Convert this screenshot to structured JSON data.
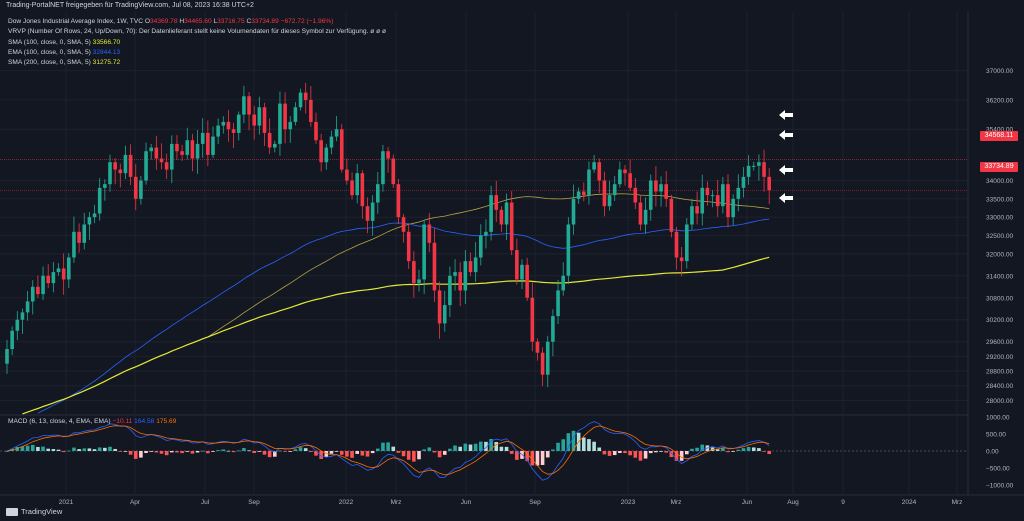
{
  "header": {
    "text": "Trading-PortalNET freigegeben für TradingView.com, Jul 08, 2023 16:38 UTC+2"
  },
  "legend": {
    "instrument": "Dow Jones Industrial Average Index, 1W, TVC",
    "ohlc": {
      "o_label": "O",
      "o": "34369.78",
      "h_label": "H",
      "h": "34465.60",
      "l_label": "L",
      "l": "33716.75",
      "c_label": "C",
      "c": "33734.89",
      "change": "−672.72 (−1.96%)"
    },
    "vrvp": "VRVP (Number Of Rows, 24, Up/Down, 70): Der Datenlieferant stellt keine Volumendaten für dieses Symbol zur Verfügung.",
    "vrvp_icons": "ø ø ø",
    "sma100_label": "SMA (100, close, 0, SMA, 5)",
    "sma100_value": "33566.70",
    "ema100_label": "EMA (100, close, 0, SMA, 5)",
    "ema100_value": "32844.13",
    "sma200_label": "SMA (200, close, 0, SMA, 5)",
    "sma200_value": "31275.72"
  },
  "macd_legend": {
    "label": "MACD (6, 13, close, 4, EMA, EMA)",
    "v1": "−10.11",
    "v2": "164.58",
    "v3": "175.69"
  },
  "price_tags": {
    "prev_close": "34568.11",
    "last": "33734.89"
  },
  "footer": {
    "brand": "TradingView"
  },
  "colors": {
    "background": "#131722",
    "up": "#22ab94",
    "down": "#f23645",
    "sma100": "#b5a642",
    "ema100": "#2962ff",
    "sma200": "#e2e834",
    "macd_line": "#2962ff",
    "signal_line": "#ff6d00",
    "hist_up": "#26a69a",
    "hist_up_light": "#b2dfdb",
    "hist_down": "#ff5252",
    "hist_down_light": "#ffcdd2"
  },
  "chart_data": {
    "type": "candlestick",
    "title": "Dow Jones Industrial Average Index, 1W, TVC",
    "y_ticks": [
      28000,
      28400,
      28800,
      29200,
      29600,
      30200,
      30800,
      31400,
      32000,
      32500,
      33000,
      33500,
      34000,
      35400,
      36200,
      37000
    ],
    "y_range": [
      27600,
      38600
    ],
    "x_ticks": [
      "2021",
      "Apr",
      "Jul",
      "Sep",
      "2022",
      "Mrz",
      "Jun",
      "Sep",
      "2023",
      "Mrz",
      "Jun",
      "Aug",
      "9",
      "2024",
      "Mrz"
    ],
    "macd_ticks": [
      "1000.00",
      "500.00",
      "0.00",
      "−500.00",
      "−1000.00"
    ],
    "macd_range": [
      -1000,
      1000
    ],
    "horizontal_lines": [
      34568.11,
      33734.89
    ],
    "closes": [
      29400,
      29900,
      30200,
      30400,
      30700,
      31100,
      30900,
      31400,
      31200,
      31500,
      31600,
      31300,
      31900,
      32600,
      32300,
      32800,
      33000,
      33100,
      33800,
      33900,
      34500,
      34300,
      34200,
      34700,
      34100,
      33500,
      34000,
      34800,
      34900,
      34600,
      34500,
      34300,
      35000,
      34800,
      34700,
      35100,
      34600,
      35000,
      35300,
      34700,
      35200,
      35500,
      35600,
      35400,
      35300,
      35800,
      36300,
      35800,
      35500,
      36000,
      35300,
      34900,
      35000,
      36100,
      35400,
      35600,
      36000,
      36400,
      36200,
      35600,
      35100,
      34500,
      34900,
      35200,
      35400,
      34300,
      34000,
      33600,
      34200,
      33300,
      32900,
      33400,
      33900,
      34800,
      34600,
      33900,
      33000,
      32600,
      31800,
      31200,
      31300,
      32800,
      32300,
      31000,
      30100,
      30600,
      31400,
      31500,
      31000,
      31800,
      31500,
      31900,
      32500,
      32600,
      33600,
      33200,
      32800,
      33400,
      32100,
      31300,
      31700,
      30800,
      29600,
      29300,
      28700,
      29600,
      30300,
      31000,
      31400,
      32800,
      33500,
      33700,
      33600,
      34300,
      34500,
      34000,
      33300,
      33600,
      33900,
      34300,
      34200,
      33800,
      33400,
      32800,
      33200,
      34000,
      33700,
      33900,
      33500,
      32600,
      31900,
      31800,
      32800,
      33300,
      33100,
      33800,
      33600,
      33600,
      33300,
      33900,
      33000,
      33500,
      33800,
      34100,
      34400,
      34400,
      34500,
      34100,
      33734.89
    ],
    "series": [
      {
        "name": "SMA (100, close, 0, SMA, 5)",
        "value": 33566.7
      },
      {
        "name": "EMA (100, close, 0, SMA, 5)",
        "value": 32844.13
      },
      {
        "name": "SMA (200, close, 0, SMA, 5)",
        "value": 31275.72
      }
    ]
  }
}
